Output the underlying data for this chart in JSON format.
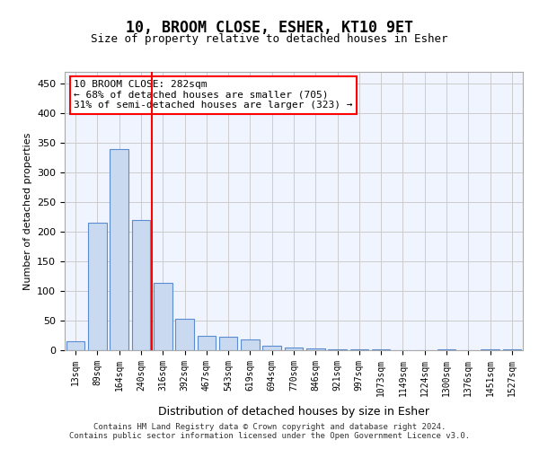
{
  "title": "10, BROOM CLOSE, ESHER, KT10 9ET",
  "subtitle": "Size of property relative to detached houses in Esher",
  "xlabel": "Distribution of detached houses by size in Esher",
  "ylabel": "Number of detached properties",
  "categories": [
    "13sqm",
    "89sqm",
    "164sqm",
    "240sqm",
    "316sqm",
    "392sqm",
    "467sqm",
    "543sqm",
    "619sqm",
    "694sqm",
    "770sqm",
    "846sqm",
    "921sqm",
    "997sqm",
    "1073sqm",
    "1149sqm",
    "1224sqm",
    "1300sqm",
    "1376sqm",
    "1451sqm",
    "1527sqm"
  ],
  "values": [
    15,
    215,
    340,
    220,
    113,
    53,
    25,
    22,
    18,
    8,
    5,
    3,
    1,
    1,
    1,
    0,
    0,
    2,
    0,
    2,
    2
  ],
  "bar_color": "#c9d9f0",
  "bar_edge_color": "#5b8bd0",
  "red_line_x": 4,
  "annotation_title": "10 BROOM CLOSE: 282sqm",
  "annotation_line1": "← 68% of detached houses are smaller (705)",
  "annotation_line2": "31% of semi-detached houses are larger (323) →",
  "property_sqm": 282,
  "footer_line1": "Contains HM Land Registry data © Crown copyright and database right 2024.",
  "footer_line2": "Contains public sector information licensed under the Open Government Licence v3.0.",
  "bg_color": "#f0f4ff",
  "ylim": [
    0,
    470
  ],
  "yticks": [
    0,
    50,
    100,
    150,
    200,
    250,
    300,
    350,
    400,
    450
  ]
}
